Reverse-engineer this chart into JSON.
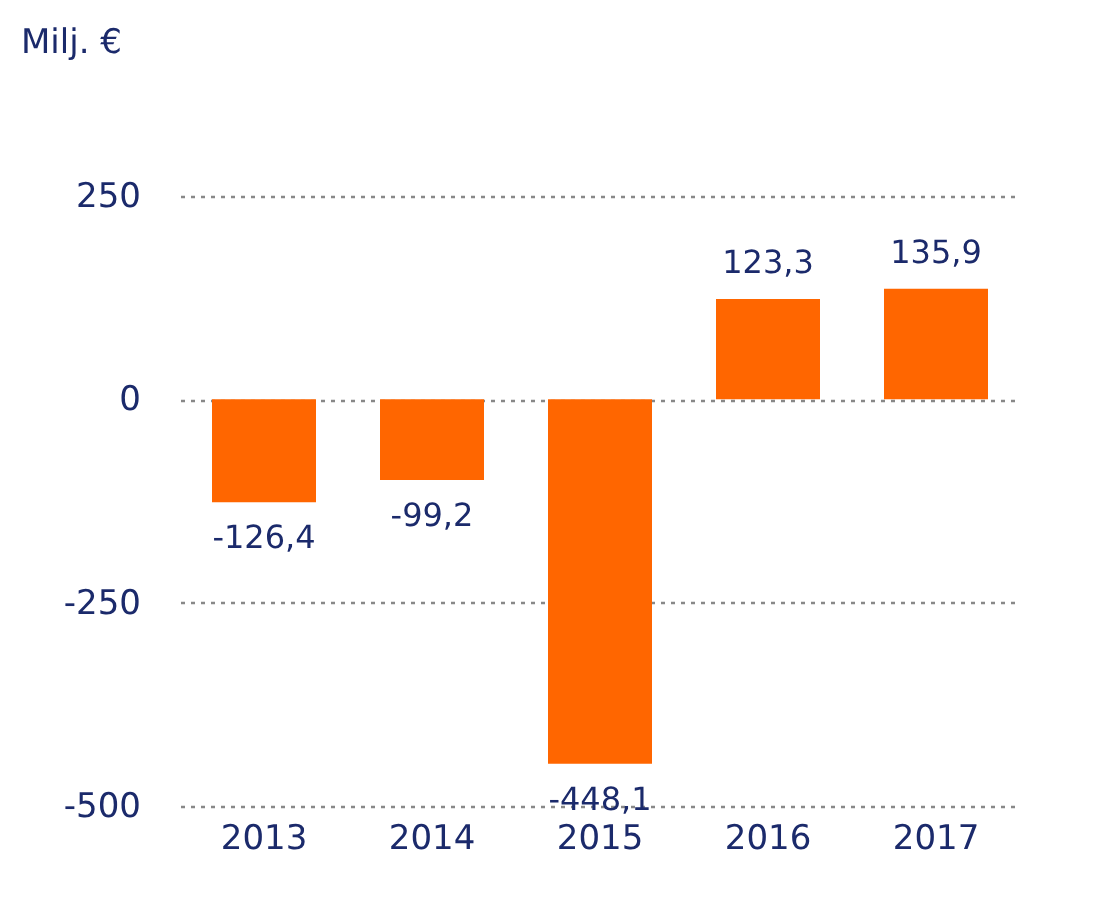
{
  "chart_data": {
    "type": "bar",
    "ylabel": "Milj. €",
    "categories": [
      "2013",
      "2014",
      "2015",
      "2016",
      "2017"
    ],
    "values": [
      -126.4,
      -99.2,
      -448.1,
      123.3,
      135.9
    ],
    "value_labels": [
      "-126,4",
      "-99,2",
      "-448,1",
      "123,3",
      "135,9"
    ],
    "color": "#ff6600",
    "ylim": [
      -500,
      250
    ],
    "yticks": [
      -500,
      -250,
      0,
      250
    ],
    "grid": "y"
  }
}
